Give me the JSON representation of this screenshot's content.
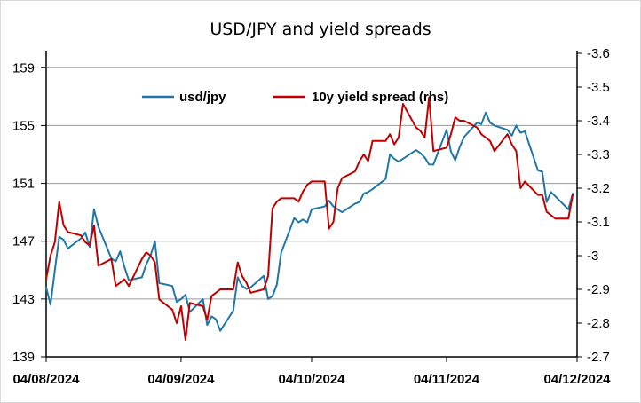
{
  "chart_data": {
    "type": "line",
    "title": "USD/JPY and yield spreads",
    "xlabel": "",
    "ylabel": "",
    "y2label": "",
    "grid": true,
    "legend_position": "top",
    "x_tick_labels": [
      "04/08/2024",
      "04/09/2024",
      "04/10/2024",
      "04/11/2024",
      "04/12/2024"
    ],
    "x_tick_dates": [
      "2024-08-04",
      "2024-09-04",
      "2024-10-04",
      "2024-11-04",
      "2024-12-04"
    ],
    "x_range": [
      "2024-08-04",
      "2024-12-04"
    ],
    "ylim": [
      139,
      160
    ],
    "yticks": [
      139,
      143,
      147,
      151,
      155,
      159
    ],
    "y2lim": [
      -2.7,
      -3.6
    ],
    "y2ticks": [
      "-2.7",
      "-2.8",
      "-2.9",
      "-3",
      "-3.1",
      "-3.2",
      "-3.3",
      "-3.4",
      "-3.5",
      "-3.6"
    ],
    "y2_inverted": true,
    "series": [
      {
        "name": "usd/jpy",
        "color": "#1f77a8",
        "axis": "left",
        "x": [
          "2024-08-04",
          "2024-08-05",
          "2024-08-06",
          "2024-08-07",
          "2024-08-08",
          "2024-08-09",
          "2024-08-12",
          "2024-08-13",
          "2024-08-14",
          "2024-08-15",
          "2024-08-16",
          "2024-08-19",
          "2024-08-20",
          "2024-08-21",
          "2024-08-22",
          "2024-08-23",
          "2024-08-26",
          "2024-08-27",
          "2024-08-28",
          "2024-08-29",
          "2024-08-30",
          "2024-09-02",
          "2024-09-03",
          "2024-09-04",
          "2024-09-05",
          "2024-09-06",
          "2024-09-09",
          "2024-09-10",
          "2024-09-11",
          "2024-09-12",
          "2024-09-13",
          "2024-09-16",
          "2024-09-17",
          "2024-09-18",
          "2024-09-19",
          "2024-09-20",
          "2024-09-23",
          "2024-09-24",
          "2024-09-25",
          "2024-09-26",
          "2024-09-27",
          "2024-09-30",
          "2024-10-01",
          "2024-10-02",
          "2024-10-03",
          "2024-10-04",
          "2024-10-07",
          "2024-10-08",
          "2024-10-09",
          "2024-10-10",
          "2024-10-11",
          "2024-10-14",
          "2024-10-15",
          "2024-10-16",
          "2024-10-17",
          "2024-10-18",
          "2024-10-21",
          "2024-10-22",
          "2024-10-23",
          "2024-10-24",
          "2024-10-25",
          "2024-10-28",
          "2024-10-29",
          "2024-10-30",
          "2024-10-31",
          "2024-11-01",
          "2024-11-04",
          "2024-11-05",
          "2024-11-06",
          "2024-11-07",
          "2024-11-08",
          "2024-11-11",
          "2024-11-12",
          "2024-11-13",
          "2024-11-14",
          "2024-11-15",
          "2024-11-18",
          "2024-11-19",
          "2024-11-20",
          "2024-11-21",
          "2024-11-22",
          "2024-11-25",
          "2024-11-26",
          "2024-11-27",
          "2024-11-28",
          "2024-11-29",
          "2024-12-02",
          "2024-12-03"
        ],
        "values": [
          143.8,
          142.6,
          145.0,
          147.3,
          147.1,
          146.5,
          147.2,
          147.6,
          146.6,
          149.2,
          148.0,
          145.8,
          145.6,
          146.3,
          145.2,
          144.3,
          144.5,
          145.4,
          146.0,
          147.0,
          144.1,
          143.9,
          142.8,
          143.0,
          143.3,
          142.1,
          143.0,
          141.2,
          141.8,
          141.6,
          140.8,
          142.2,
          144.5,
          143.9,
          143.7,
          143.8,
          144.6,
          143.0,
          143.2,
          144.0,
          146.2,
          148.6,
          148.3,
          148.5,
          148.3,
          149.2,
          149.4,
          149.8,
          149.4,
          149.2,
          149.0,
          149.6,
          149.7,
          150.3,
          150.4,
          150.6,
          151.3,
          153.0,
          152.7,
          152.5,
          152.7,
          153.3,
          153.1,
          152.8,
          152.3,
          152.3,
          154.7,
          153.2,
          152.6,
          153.5,
          154.2,
          155.2,
          155.1,
          155.9,
          155.2,
          155.0,
          154.7,
          154.3,
          155.0,
          154.5,
          154.6,
          151.9,
          151.8,
          149.7,
          150.4,
          150.1,
          149.2,
          150.3
        ]
      },
      {
        "name": "10y yield spread (rhs)",
        "color": "#c00000",
        "axis": "right",
        "x": [
          "2024-08-04",
          "2024-08-05",
          "2024-08-06",
          "2024-08-07",
          "2024-08-08",
          "2024-08-09",
          "2024-08-12",
          "2024-08-13",
          "2024-08-14",
          "2024-08-15",
          "2024-08-16",
          "2024-08-19",
          "2024-08-20",
          "2024-08-21",
          "2024-08-22",
          "2024-08-23",
          "2024-08-26",
          "2024-08-27",
          "2024-08-28",
          "2024-08-29",
          "2024-08-30",
          "2024-09-02",
          "2024-09-03",
          "2024-09-04",
          "2024-09-05",
          "2024-09-06",
          "2024-09-09",
          "2024-09-10",
          "2024-09-11",
          "2024-09-12",
          "2024-09-13",
          "2024-09-16",
          "2024-09-17",
          "2024-09-18",
          "2024-09-19",
          "2024-09-20",
          "2024-09-23",
          "2024-09-24",
          "2024-09-25",
          "2024-09-26",
          "2024-09-27",
          "2024-09-30",
          "2024-10-01",
          "2024-10-02",
          "2024-10-03",
          "2024-10-04",
          "2024-10-07",
          "2024-10-08",
          "2024-10-09",
          "2024-10-10",
          "2024-10-11",
          "2024-10-14",
          "2024-10-15",
          "2024-10-16",
          "2024-10-17",
          "2024-10-18",
          "2024-10-21",
          "2024-10-22",
          "2024-10-23",
          "2024-10-24",
          "2024-10-25",
          "2024-10-28",
          "2024-10-29",
          "2024-10-30",
          "2024-10-31",
          "2024-11-01",
          "2024-11-04",
          "2024-11-05",
          "2024-11-06",
          "2024-11-07",
          "2024-11-08",
          "2024-11-11",
          "2024-11-12",
          "2024-11-13",
          "2024-11-14",
          "2024-11-15",
          "2024-11-18",
          "2024-11-19",
          "2024-11-20",
          "2024-11-21",
          "2024-11-22",
          "2024-11-25",
          "2024-11-26",
          "2024-11-27",
          "2024-11-28",
          "2024-11-29",
          "2024-12-02",
          "2024-12-03"
        ],
        "values": [
          -2.93,
          -3.0,
          -3.04,
          -3.16,
          -3.09,
          -3.07,
          -3.06,
          -3.04,
          -3.03,
          -3.09,
          -2.97,
          -2.99,
          -2.91,
          -2.92,
          -2.93,
          -2.91,
          -2.99,
          -3.01,
          -3.0,
          -2.98,
          -2.87,
          -2.84,
          -2.8,
          -2.85,
          -2.75,
          -2.86,
          -2.85,
          -2.81,
          -2.88,
          -2.89,
          -2.9,
          -2.9,
          -2.98,
          -2.94,
          -2.92,
          -2.89,
          -2.9,
          -2.94,
          -3.14,
          -3.16,
          -3.17,
          -3.17,
          -3.16,
          -3.19,
          -3.21,
          -3.22,
          -3.22,
          -3.08,
          -3.1,
          -3.2,
          -3.23,
          -3.25,
          -3.28,
          -3.3,
          -3.28,
          -3.34,
          -3.34,
          -3.36,
          -3.33,
          -3.35,
          -3.45,
          -3.38,
          -3.37,
          -3.35,
          -3.47,
          -3.31,
          -3.32,
          -3.36,
          -3.41,
          -3.4,
          -3.4,
          -3.38,
          -3.36,
          -3.35,
          -3.34,
          -3.31,
          -3.36,
          -3.33,
          -3.31,
          -3.2,
          -3.22,
          -3.18,
          -3.18,
          -3.13,
          -3.12,
          -3.11,
          -3.11,
          -3.18
        ]
      }
    ]
  }
}
